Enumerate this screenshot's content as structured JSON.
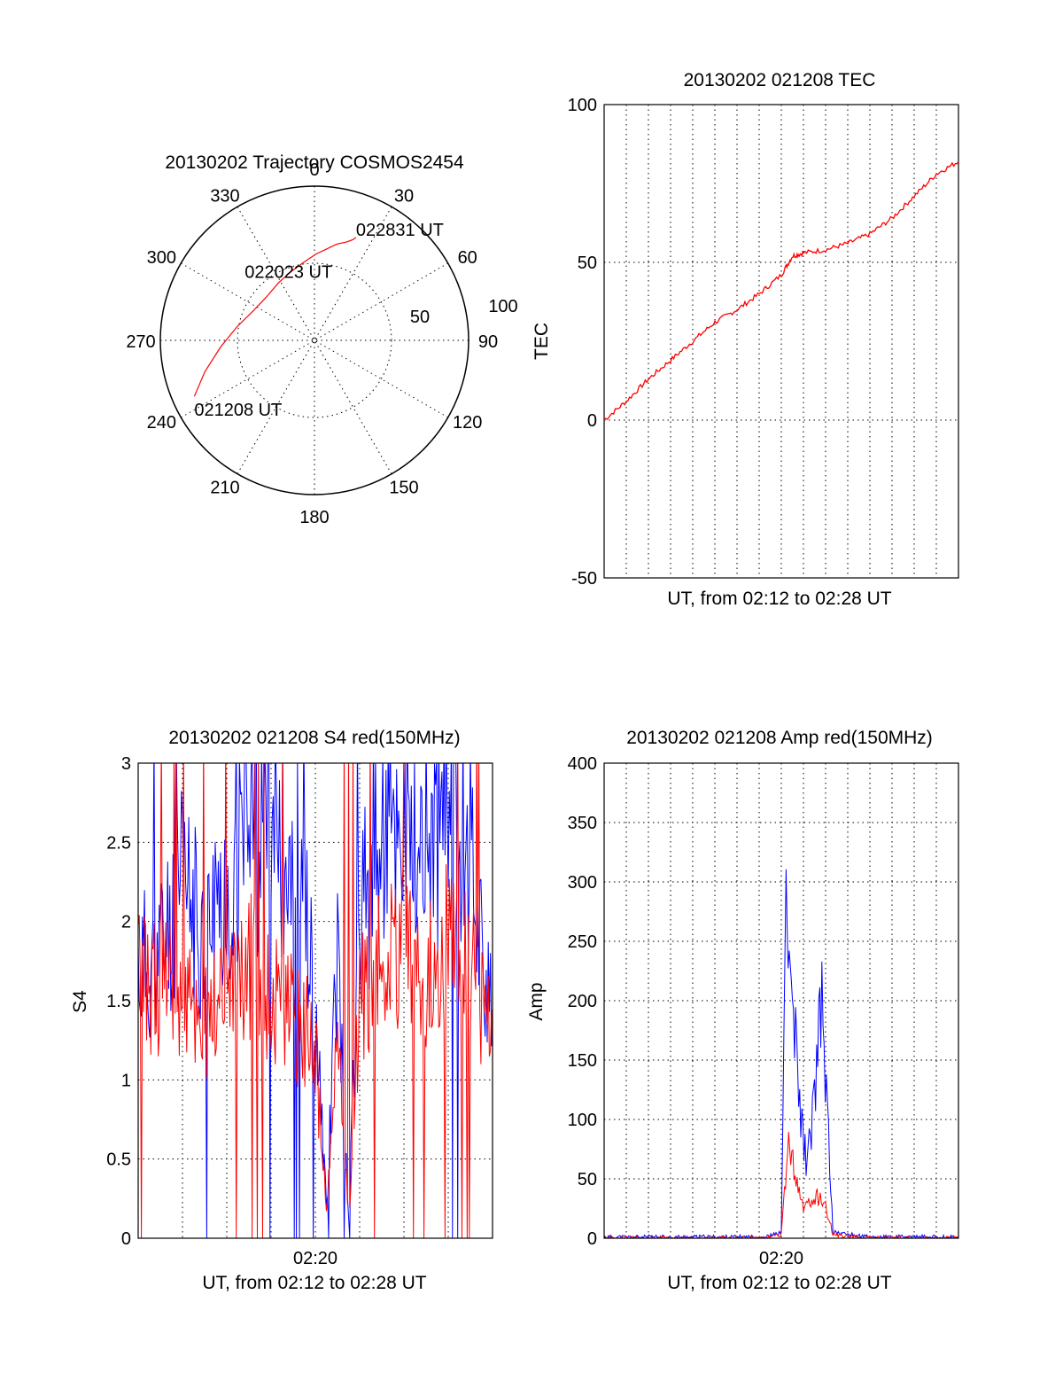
{
  "colors": {
    "red": "#ff0000",
    "blue": "#0000ff",
    "ink": "#000000"
  },
  "chart_data": [
    {
      "type": "polar",
      "title": "20130202 Trajectory COSMOS2454",
      "azimuth_labels": [
        "0",
        "30",
        "60",
        "90",
        "120",
        "150",
        "180",
        "210",
        "240",
        "270",
        "300",
        "330"
      ],
      "radial_labels": [
        "50",
        "100"
      ],
      "rlim": [
        0,
        100
      ],
      "grid": true,
      "series": [
        {
          "color": "#ff0000",
          "points": [
            {
              "az": 245,
              "r": 86
            },
            {
              "az": 254,
              "r": 74
            },
            {
              "az": 266,
              "r": 61
            },
            {
              "az": 280,
              "r": 51
            },
            {
              "az": 296,
              "r": 44
            },
            {
              "az": 312,
              "r": 42
            },
            {
              "az": 328,
              "r": 44
            },
            {
              "az": 341,
              "r": 47
            },
            {
              "az": 352,
              "r": 51
            },
            {
              "az": 1,
              "r": 56
            },
            {
              "az": 8,
              "r": 60
            },
            {
              "az": 13,
              "r": 64
            },
            {
              "az": 18,
              "r": 67
            },
            {
              "az": 21,
              "r": 70
            },
            {
              "az": 22,
              "r": 72
            }
          ]
        }
      ],
      "annotations": [
        {
          "text": "022831 UT",
          "az": 22,
          "r": 72
        },
        {
          "text": "022023 UT",
          "az": 339,
          "r": 47
        },
        {
          "text": "021208 UT",
          "az": 245,
          "r": 86
        }
      ]
    },
    {
      "type": "line",
      "title": "20130202 021208 TEC",
      "xlabel": "UT, from 02:12 to 02:28 UT",
      "ylabel": "TEC",
      "ylim": [
        -50,
        100
      ],
      "yticks": [
        "-50",
        "0",
        "50",
        "100"
      ],
      "xlim": [
        "02:12",
        "02:28"
      ],
      "grid": true,
      "series": [
        {
          "color": "#ff0000",
          "x": [
            "02:12",
            "02:13",
            "02:14",
            "02:15",
            "02:16",
            "02:17",
            "02:18",
            "02:19",
            "02:20",
            "02:20:30",
            "02:21",
            "02:22",
            "02:23",
            "02:24",
            "02:25",
            "02:26",
            "02:27",
            "02:28"
          ],
          "values": [
            0,
            6,
            13,
            19,
            25,
            31,
            35,
            40,
            46,
            52,
            53,
            54,
            56,
            59,
            64,
            71,
            78,
            82
          ]
        }
      ]
    },
    {
      "type": "line",
      "title": "20130202 021208 S4 red(150MHz)",
      "xlabel": "UT, from 02:12 to 02:28 UT",
      "ylabel": "S4",
      "ylim": [
        0,
        3
      ],
      "yticks": [
        "0",
        "0.5",
        "1",
        "1.5",
        "2",
        "2.5",
        "3"
      ],
      "xtick_label": "02:20",
      "xlim": [
        "02:12",
        "02:28"
      ],
      "grid": true,
      "series": [
        {
          "color": "#0000ff",
          "x": [
            "02:12",
            "02:13",
            "02:14",
            "02:15",
            "02:16",
            "02:17",
            "02:18",
            "02:19",
            "02:20",
            "02:20:30",
            "02:21",
            "02:21:30",
            "02:22",
            "02:23",
            "02:24",
            "02:25",
            "02:26",
            "02:27",
            "02:28"
          ],
          "values": [
            1.7,
            1.8,
            2.2,
            1.9,
            2.2,
            2.6,
            2.4,
            2.6,
            1.5,
            0.2,
            1.8,
            0.15,
            2.0,
            2.5,
            2.6,
            2.3,
            2.8,
            2.5,
            1.3
          ]
        },
        {
          "color": "#ff0000",
          "x": [
            "02:12",
            "02:13",
            "02:14",
            "02:15",
            "02:16",
            "02:17",
            "02:18",
            "02:19",
            "02:20",
            "02:20:30",
            "02:21",
            "02:21:30",
            "02:22",
            "02:23",
            "02:24",
            "02:25",
            "02:26",
            "02:27",
            "02:28"
          ],
          "values": [
            1.6,
            1.6,
            1.5,
            1.4,
            1.6,
            1.7,
            1.5,
            1.4,
            1.2,
            0.15,
            1.3,
            0.12,
            1.5,
            1.7,
            1.8,
            1.6,
            1.9,
            1.7,
            1.2
          ]
        }
      ]
    },
    {
      "type": "line",
      "title": "20130202 021208 Amp red(150MHz)",
      "xlabel": "UT, from 02:12 to 02:28 UT",
      "ylabel": "Amp",
      "ylim": [
        0,
        400
      ],
      "yticks": [
        "0",
        "50",
        "100",
        "150",
        "200",
        "250",
        "300",
        "350",
        "400"
      ],
      "xtick_label": "02:20",
      "xlim": [
        "02:12",
        "02:28"
      ],
      "grid": true,
      "series": [
        {
          "color": "#0000ff",
          "x": [
            "02:12",
            "02:19:20",
            "02:20:00",
            "02:20:10",
            "02:20:30",
            "02:20:50",
            "02:21:10",
            "02:21:30",
            "02:21:50",
            "02:22:20",
            "02:24",
            "02:28"
          ],
          "values": [
            1,
            1,
            5,
            270,
            200,
            110,
            60,
            120,
            200,
            5,
            1,
            1
          ]
        },
        {
          "color": "#ff0000",
          "x": [
            "02:12",
            "02:19:20",
            "02:20:00",
            "02:20:20",
            "02:20:40",
            "02:21:00",
            "02:21:20",
            "02:21:40",
            "02:22:00",
            "02:22:20",
            "02:24",
            "02:28"
          ],
          "values": [
            0,
            0,
            3,
            80,
            50,
            25,
            30,
            35,
            28,
            3,
            0,
            0
          ]
        }
      ]
    }
  ]
}
